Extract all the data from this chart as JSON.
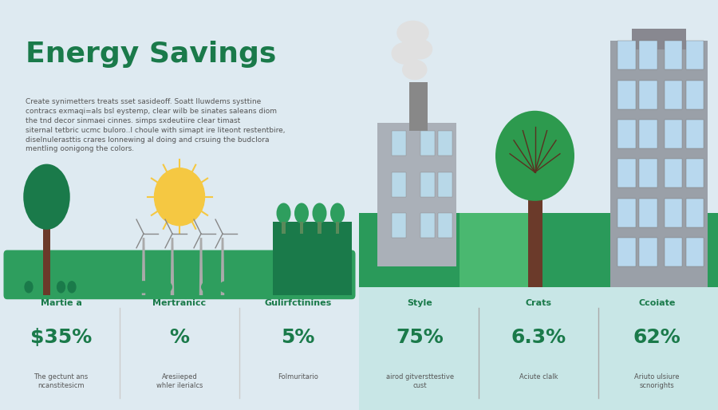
{
  "title": "Energy Savings",
  "subtitle": "Create synimetters treats sset sasideoff. Soatt Iluwdems systtine\ncontracs exmaqi=als bsl eystemp, clear wilb be sinates saleans diom\nthe tnd decor sinmaei cinnes. simps sxdeutiire clear timast\nsiternal tetbric ucmc buloro..l choule with simapt ire liteont restentbire,\ndiselnulerasttis crares lonnewing al doing and crsuing the budclora\nmentling oonigong the colors.",
  "bg_left": "#deeaf1",
  "bg_right": "#b2d8d8",
  "green_dark": "#1a7a4a",
  "green_medium": "#2e9e5e",
  "green_light": "#4cbb7e",
  "left_stats": [
    {
      "label": "Martie a",
      "value": "$35%",
      "desc": "The gectunt ans\nncanstitesicm"
    },
    {
      "label": "Mertranicc",
      "value": "%",
      "desc": "Aresiieped\nwhler ilerialcs"
    },
    {
      "label": "Gulirfctinines",
      "value": "5%",
      "desc": "Folmuritario"
    }
  ],
  "right_stats": [
    {
      "label": "Style",
      "value": "75%",
      "desc": "airod gitversttestive\ncust"
    },
    {
      "label": "Crats",
      "value": "6.3%",
      "desc": "Aciute clalk"
    },
    {
      "label": "Ccoiate",
      "value": "62%",
      "desc": "Ariuto ulsiure\nscnorights"
    }
  ]
}
